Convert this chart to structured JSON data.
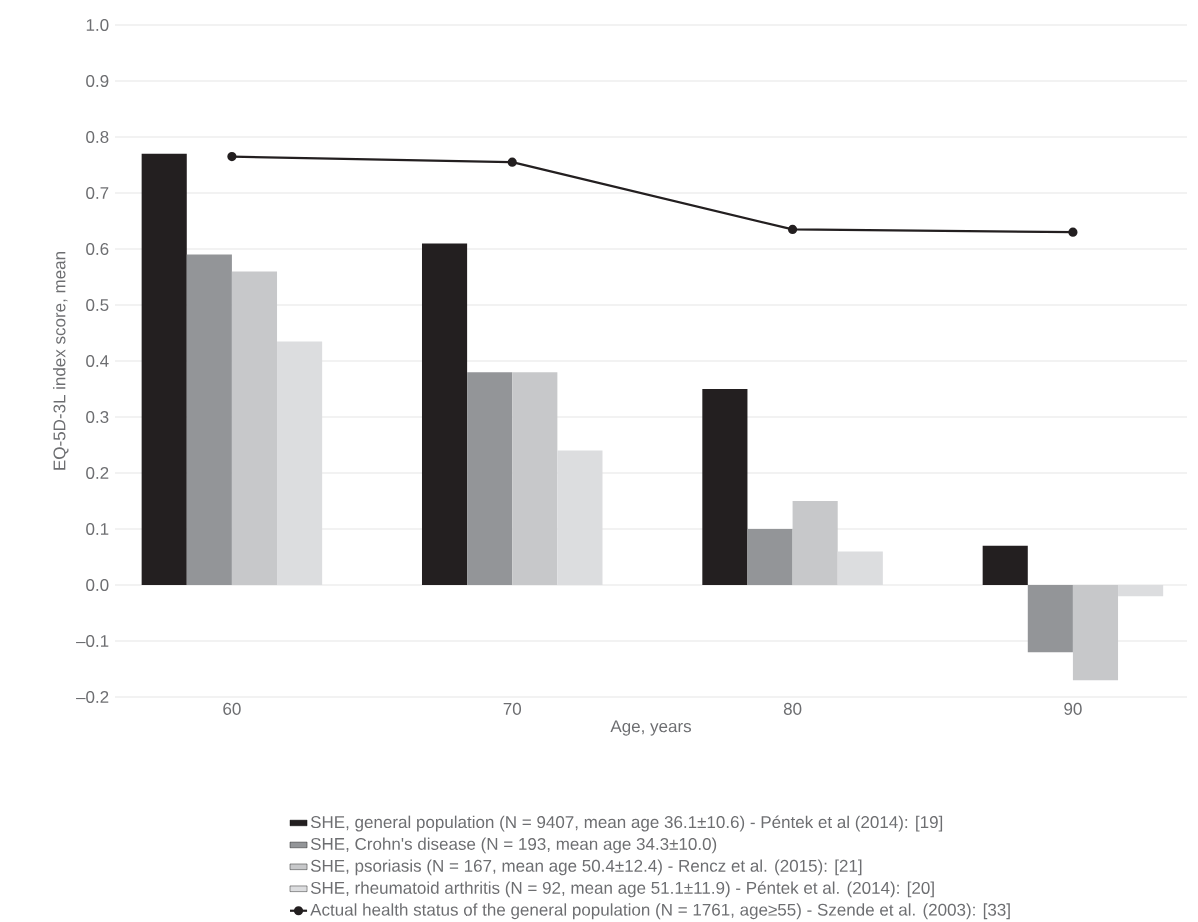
{
  "chart_data": {
    "type": "bar",
    "xlabel": "Age, years",
    "ylabel": "EQ-5D-3L index score, mean",
    "categories": [
      "60",
      "70",
      "80",
      "90"
    ],
    "series": [
      {
        "name": "SHE, general population (N = 9407, mean age 36.1±10.6) - Péntek et al (2014): [19]",
        "color": "#231f20",
        "values": [
          0.77,
          0.61,
          0.35,
          0.07
        ]
      },
      {
        "name": "SHE, Crohn's disease (N = 193, mean age 34.3±10.0)",
        "color": "#939598",
        "values": [
          0.59,
          0.38,
          0.1,
          -0.12
        ]
      },
      {
        "name": "SHE, psoriasis (N = 167, mean age 50.4±12.4) - Rencz et al. (2015): [21]",
        "color": "#c7c8ca",
        "values": [
          0.56,
          0.38,
          0.15,
          -0.17
        ]
      },
      {
        "name": "SHE, rheumatoid arthritis (N = 92, mean age 51.1±11.9) - Péntek et al. (2014): [20]",
        "color": "#dcdddf",
        "values": [
          0.435,
          0.24,
          0.06,
          -0.02
        ]
      },
      {
        "name": "Actual health status of the general population (N = 1761, age≥55) - Szende et al. (2003): [33]",
        "color": "#231f20",
        "type": "line",
        "marker": "circle",
        "line_style": "solid",
        "values": [
          0.765,
          0.755,
          0.635,
          0.63
        ]
      }
    ],
    "ylim": [
      -0.2,
      1.0
    ],
    "yticks": [
      {
        "value": -0.2,
        "label": "–0.2"
      },
      {
        "value": -0.1,
        "label": "–0.1"
      },
      {
        "value": 0,
        "label": "0.0"
      },
      {
        "value": 0.1,
        "label": "0.1"
      },
      {
        "value": 0.2,
        "label": "0.2"
      },
      {
        "value": 0.3,
        "label": "0.3"
      },
      {
        "value": 0.4,
        "label": "0.4"
      },
      {
        "value": 0.5,
        "label": "0.5"
      },
      {
        "value": 0.6,
        "label": "0.6"
      },
      {
        "value": 0.7,
        "label": "0.7"
      },
      {
        "value": 0.8,
        "label": "0.8"
      },
      {
        "value": 0.9,
        "label": "0.9"
      },
      {
        "value": 1.0,
        "label": "1.0"
      }
    ],
    "grid": "y",
    "legend": "bottom"
  }
}
